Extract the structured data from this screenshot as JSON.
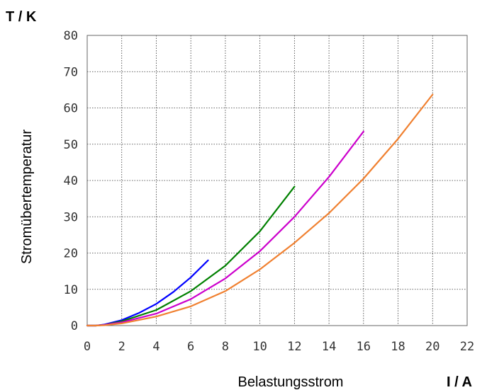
{
  "chart_data": {
    "type": "line",
    "xlabel": "Belastungsstrom",
    "ylabel": "Stromübertemperatur",
    "x_unit": "I / A",
    "y_unit": "T / K",
    "xlim": [
      0,
      22
    ],
    "ylim": [
      0,
      80
    ],
    "x_ticks": [
      "0",
      "2",
      "4",
      "6",
      "8",
      "10",
      "12",
      "14",
      "16",
      "18",
      "20",
      "22"
    ],
    "y_ticks": [
      "0",
      "10",
      "20",
      "30",
      "40",
      "50",
      "60",
      "70",
      "80"
    ],
    "grid": true,
    "legend": "none",
    "series": [
      {
        "color": "#0000ff",
        "x": [
          0,
          0.5,
          1,
          2,
          3,
          4,
          5,
          6,
          7
        ],
        "y": [
          0,
          0,
          0.3,
          1.5,
          3.5,
          6,
          9.3,
          13.3,
          18
        ]
      },
      {
        "color": "#008000",
        "x": [
          0,
          0.5,
          1,
          2,
          4,
          6,
          8,
          10,
          12
        ],
        "y": [
          0,
          0,
          0.2,
          1.2,
          4.3,
          9.5,
          16.5,
          26,
          38.3
        ]
      },
      {
        "color": "#cc00cc",
        "x": [
          0,
          0.5,
          1,
          2,
          4,
          6,
          8,
          10,
          12,
          14,
          16
        ],
        "y": [
          0,
          0,
          0.2,
          0.9,
          3.3,
          7.3,
          13,
          20.5,
          30,
          41,
          53.5
        ]
      },
      {
        "color": "#f08030",
        "x": [
          0,
          0.5,
          1,
          2,
          4,
          6,
          8,
          10,
          12,
          14,
          16,
          18,
          20
        ],
        "y": [
          0,
          0,
          0.1,
          0.6,
          2.5,
          5.3,
          9.5,
          15.5,
          22.8,
          31,
          40.5,
          51.5,
          63.7
        ]
      }
    ]
  }
}
